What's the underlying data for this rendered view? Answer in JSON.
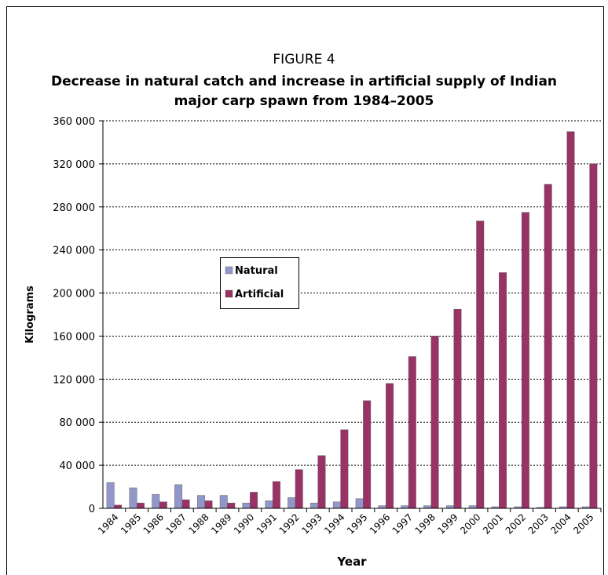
{
  "chart_data": {
    "type": "bar",
    "supertitle": "FIGURE 4",
    "title": "Decrease in natural catch and increase in artificial supply of Indian major carp spawn from 1984–2005",
    "xlabel": "Year",
    "ylabel": "Kilograms",
    "categories": [
      "1984",
      "1985",
      "1986",
      "1987",
      "1988",
      "1989",
      "1990",
      "1991",
      "1992",
      "1993",
      "1994",
      "1995",
      "1996",
      "1997",
      "1998",
      "1999",
      "2000",
      "2001",
      "2002",
      "2003",
      "2004",
      "2005"
    ],
    "series": [
      {
        "name": "Natural",
        "color": "#9297c9",
        "values": [
          24000,
          19000,
          13000,
          22000,
          12000,
          12000,
          5000,
          7000,
          10000,
          5000,
          6000,
          9000,
          2500,
          2500,
          2500,
          2500,
          2500,
          1500,
          1500,
          1000,
          1500,
          1500
        ]
      },
      {
        "name": "Artificial",
        "color": "#993366",
        "values": [
          3000,
          5000,
          6000,
          8000,
          7000,
          5000,
          15000,
          25000,
          36000,
          49000,
          73000,
          100000,
          116000,
          141000,
          160000,
          185000,
          267000,
          219000,
          275000,
          301000,
          350000,
          320000
        ]
      }
    ],
    "ylim": [
      0,
      360000
    ],
    "yticks": [
      0,
      {
        "value": 40000,
        "label": "40 000"
      },
      {
        "value": 80000,
        "label": "80 000"
      },
      {
        "value": 120000,
        "label": "120 000"
      },
      {
        "value": 160000,
        "label": "160 000"
      },
      {
        "value": 200000,
        "label": "200 000"
      },
      {
        "value": 240000,
        "label": "240 000"
      },
      {
        "value": 280000,
        "label": "280 000"
      },
      {
        "value": 320000,
        "label": "320 000"
      },
      {
        "value": 360000,
        "label": "360 000"
      }
    ],
    "grid": true,
    "legend": "center-left"
  }
}
